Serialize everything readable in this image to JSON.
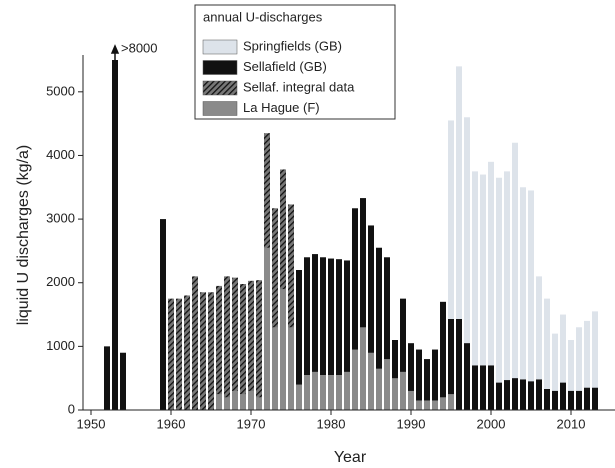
{
  "chart_data": {
    "type": "bar",
    "legend_title": "annual U-discharges",
    "xlabel": "Year",
    "ylabel": "liquid U discharges (kg/a)",
    "annotation": ">8000",
    "x": [
      1952,
      1953,
      1954,
      1955,
      1956,
      1957,
      1958,
      1959,
      1960,
      1961,
      1962,
      1963,
      1964,
      1965,
      1966,
      1967,
      1968,
      1969,
      1970,
      1971,
      1972,
      1973,
      1974,
      1975,
      1976,
      1977,
      1978,
      1979,
      1980,
      1981,
      1982,
      1983,
      1984,
      1985,
      1986,
      1987,
      1988,
      1989,
      1990,
      1991,
      1992,
      1993,
      1994,
      1995,
      1996,
      1997,
      1998,
      1999,
      2000,
      2001,
      2002,
      2003,
      2004,
      2005,
      2006,
      2007,
      2008,
      2009,
      2010,
      2011,
      2012,
      2013
    ],
    "series": [
      {
        "name": "Springfields (GB)",
        "color": "#dde3ea",
        "values": [
          null,
          null,
          null,
          null,
          null,
          null,
          null,
          null,
          null,
          null,
          null,
          null,
          null,
          null,
          null,
          null,
          null,
          null,
          null,
          null,
          null,
          null,
          null,
          null,
          null,
          null,
          null,
          null,
          null,
          null,
          null,
          null,
          null,
          null,
          null,
          null,
          null,
          null,
          null,
          null,
          null,
          null,
          null,
          4550,
          5400,
          4600,
          3750,
          3700,
          3900,
          3650,
          3750,
          4200,
          3500,
          3450,
          2100,
          1750,
          1200,
          1500,
          1100,
          1300,
          1400,
          1550
        ]
      },
      {
        "name": "Sellafield (GB)",
        "color": "#111111",
        "values": [
          1000,
          5500,
          900,
          null,
          null,
          null,
          null,
          3000,
          null,
          null,
          null,
          null,
          null,
          null,
          null,
          null,
          null,
          null,
          null,
          null,
          null,
          null,
          null,
          null,
          2200,
          2400,
          2450,
          2400,
          2380,
          2370,
          2350,
          3170,
          3330,
          2900,
          2550,
          2400,
          1100,
          1750,
          1050,
          950,
          800,
          950,
          1700,
          1430,
          1430,
          1050,
          700,
          700,
          700,
          430,
          470,
          500,
          480,
          450,
          480,
          330,
          300,
          430,
          300,
          300,
          350,
          350
        ]
      },
      {
        "name": "Sellaf. integral data",
        "color": "#222222",
        "hatch": true,
        "values": [
          null,
          null,
          null,
          null,
          null,
          null,
          null,
          null,
          1750,
          1750,
          1800,
          2100,
          1850,
          1850,
          1950,
          2100,
          2080,
          1980,
          2030,
          2040,
          4350,
          3170,
          3780,
          3230,
          null,
          null,
          null,
          null,
          null,
          null,
          null,
          null,
          null,
          null,
          null,
          null,
          null,
          null,
          null,
          null,
          null,
          null,
          null,
          null,
          null,
          null,
          null,
          null,
          null,
          null,
          null,
          null,
          null,
          null,
          null,
          null,
          null,
          null,
          null,
          null,
          null,
          null
        ]
      },
      {
        "name": "La Hague (F)",
        "color": "#8a8a8a",
        "values": [
          null,
          null,
          null,
          null,
          null,
          null,
          null,
          null,
          null,
          null,
          null,
          null,
          null,
          null,
          250,
          200,
          300,
          250,
          300,
          200,
          2550,
          1300,
          1900,
          1300,
          400,
          550,
          600,
          550,
          550,
          550,
          600,
          950,
          1300,
          900,
          650,
          800,
          500,
          600,
          300,
          150,
          150,
          150,
          200,
          250,
          null,
          null,
          null,
          null,
          null,
          null,
          null,
          null,
          null,
          null,
          null,
          null,
          null,
          null,
          null,
          null,
          null,
          null
        ]
      }
    ],
    "xlim": [
      1949,
      2015.5
    ],
    "ylim": [
      0,
      5500
    ],
    "xticks": [
      1950,
      1960,
      1970,
      1980,
      1990,
      2000,
      2010
    ],
    "yticks": [
      0,
      1000,
      2000,
      3000,
      4000,
      5000
    ]
  }
}
